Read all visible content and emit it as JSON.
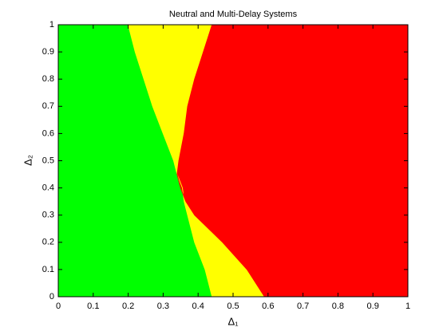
{
  "chart_data": {
    "type": "region",
    "title": "Neutral and Multi-Delay Systems",
    "xlabel": "Δ₁",
    "ylabel": "Δ₂",
    "y": [
      0,
      0.1,
      0.2,
      0.3,
      0.35,
      0.4,
      0.45,
      0.5,
      0.6,
      0.7,
      0.8,
      0.9,
      1
    ],
    "boundaries": [
      {
        "x": [
          0.44,
          0.42,
          0.39,
          0.37,
          0.36,
          0.355,
          0.34,
          0.33,
          0.3,
          0.27,
          0.245,
          0.22,
          0.2
        ]
      },
      {
        "x": [
          0.59,
          0.54,
          0.47,
          0.39,
          0.365,
          0.35,
          0.34,
          0.345,
          0.36,
          0.37,
          0.39,
          0.415,
          0.44
        ]
      }
    ],
    "colors": [
      "#00ff00",
      "#ffff00",
      "#ff0000"
    ],
    "xlim": [
      0,
      1
    ],
    "ylim": [
      0,
      1
    ],
    "xticks": [
      0,
      0.1,
      0.2,
      0.3,
      0.4,
      0.5,
      0.6,
      0.7,
      0.8,
      0.9,
      1
    ],
    "yticks": [
      0,
      0.1,
      0.2,
      0.3,
      0.4,
      0.5,
      0.6,
      0.7,
      0.8,
      0.9,
      1
    ]
  }
}
